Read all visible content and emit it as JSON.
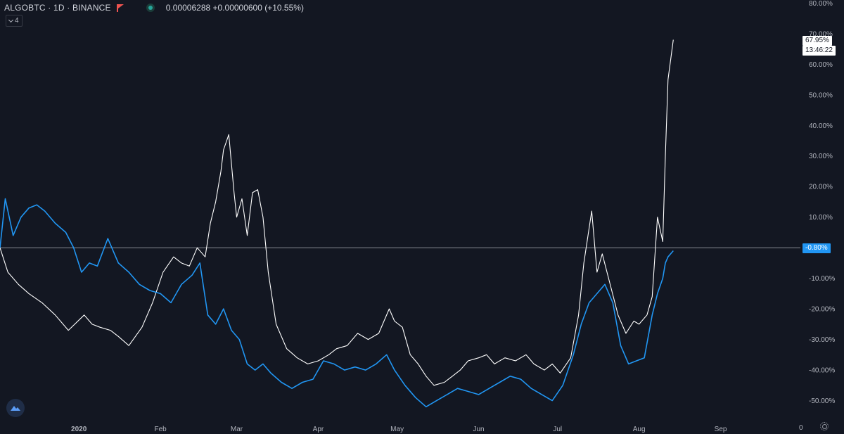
{
  "header": {
    "symbol": "ALGOBTC · 1D · BINANCE",
    "price": "0.00006288 +0.00000600 (+10.55%)",
    "collapse_count": "4"
  },
  "tags": {
    "white_value": "67.95%",
    "countdown": "13:46:22",
    "blue_value": "-0.80%"
  },
  "bottom_right_label": "0",
  "colors": {
    "background": "#131722",
    "white_series": "#ffffff",
    "blue_series": "#2196f3",
    "baseline": "#9598a1",
    "text": "#b2b5be"
  },
  "icons": [
    "flag-icon",
    "status-dot-icon",
    "chevron-down-icon",
    "logo-icon",
    "settings-icon"
  ],
  "chart_data": {
    "type": "line",
    "xlabel": "",
    "ylabel": "",
    "grid": false,
    "y_unit": "%",
    "ylim": [
      -57,
      81
    ],
    "xlim": [
      "2019-12-02",
      "2020-09-30"
    ],
    "y_ticks": [
      80,
      70,
      60,
      50,
      40,
      30,
      20,
      10,
      0,
      -10,
      -20,
      -30,
      -40,
      -50
    ],
    "y_tick_labels": [
      "80.00%",
      "70.00%",
      "60.00%",
      "50.00%",
      "40.00%",
      "30.00%",
      "20.00%",
      "10.00%",
      "0.00%",
      "-10.00%",
      "-20.00%",
      "-30.00%",
      "-40.00%",
      "-50.00%"
    ],
    "x_ticks": [
      {
        "date": "2020-01-01",
        "label": "2020"
      },
      {
        "date": "2020-02-01",
        "label": "Feb"
      },
      {
        "date": "2020-03-01",
        "label": "Mar"
      },
      {
        "date": "2020-04-01",
        "label": "Apr"
      },
      {
        "date": "2020-05-01",
        "label": "May"
      },
      {
        "date": "2020-06-01",
        "label": "Jun"
      },
      {
        "date": "2020-07-01",
        "label": "Jul"
      },
      {
        "date": "2020-08-01",
        "label": "Aug"
      },
      {
        "date": "2020-09-01",
        "label": "Sep"
      }
    ],
    "baseline": 0,
    "series": [
      {
        "color": "#ffffff",
        "x": [
          "2019-12-02",
          "2019-12-05",
          "2019-12-09",
          "2019-12-13",
          "2019-12-18",
          "2019-12-23",
          "2019-12-28",
          "2020-01-03",
          "2020-01-06",
          "2020-01-09",
          "2020-01-13",
          "2020-01-16",
          "2020-01-20",
          "2020-01-25",
          "2020-01-29",
          "2020-02-02",
          "2020-02-06",
          "2020-02-09",
          "2020-02-12",
          "2020-02-15",
          "2020-02-18",
          "2020-02-20",
          "2020-02-22",
          "2020-02-24",
          "2020-02-25",
          "2020-02-27",
          "2020-02-29",
          "2020-03-01",
          "2020-03-03",
          "2020-03-05",
          "2020-03-07",
          "2020-03-09",
          "2020-03-11",
          "2020-03-13",
          "2020-03-16",
          "2020-03-20",
          "2020-03-24",
          "2020-03-28",
          "2020-04-01",
          "2020-04-05",
          "2020-04-08",
          "2020-04-12",
          "2020-04-16",
          "2020-04-20",
          "2020-04-24",
          "2020-04-28",
          "2020-04-30",
          "2020-05-03",
          "2020-05-06",
          "2020-05-09",
          "2020-05-12",
          "2020-05-15",
          "2020-05-19",
          "2020-05-22",
          "2020-05-25",
          "2020-05-28",
          "2020-06-01",
          "2020-06-04",
          "2020-06-07",
          "2020-06-11",
          "2020-06-15",
          "2020-06-19",
          "2020-06-22",
          "2020-06-26",
          "2020-06-29",
          "2020-07-02",
          "2020-07-06",
          "2020-07-09",
          "2020-07-11",
          "2020-07-14",
          "2020-07-16",
          "2020-07-18",
          "2020-07-21",
          "2020-07-24",
          "2020-07-27",
          "2020-07-30",
          "2020-08-01",
          "2020-08-04",
          "2020-08-06",
          "2020-08-08",
          "2020-08-10",
          "2020-08-11",
          "2020-08-12",
          "2020-08-14"
        ],
        "values": [
          0,
          -8,
          -12,
          -15,
          -18,
          -22,
          -27,
          -22,
          -25,
          -26,
          -27,
          -29,
          -32,
          -26,
          -18,
          -8,
          -3,
          -5,
          -6,
          0,
          -3,
          8,
          15,
          25,
          32,
          37,
          18,
          10,
          16,
          4,
          18,
          19,
          10,
          -8,
          -25,
          -33,
          -36,
          -38,
          -37,
          -35,
          -33,
          -32,
          -28,
          -30,
          -28,
          -20,
          -24,
          -26,
          -35,
          -38,
          -42,
          -45,
          -44,
          -42,
          -40,
          -37,
          -36,
          -35,
          -38,
          -36,
          -37,
          -35,
          -38,
          -40,
          -38,
          -41,
          -36,
          -22,
          -5,
          12,
          -8,
          -2,
          -12,
          -22,
          -28,
          -24,
          -25,
          -22,
          -16,
          10,
          2,
          30,
          55,
          68
        ]
      },
      {
        "color": "#2196f3",
        "x": [
          "2019-12-02",
          "2019-12-04",
          "2019-12-07",
          "2019-12-10",
          "2019-12-13",
          "2019-12-16",
          "2019-12-19",
          "2019-12-23",
          "2019-12-27",
          "2019-12-30",
          "2020-01-02",
          "2020-01-05",
          "2020-01-08",
          "2020-01-12",
          "2020-01-16",
          "2020-01-20",
          "2020-01-24",
          "2020-01-28",
          "2020-02-01",
          "2020-02-05",
          "2020-02-09",
          "2020-02-13",
          "2020-02-16",
          "2020-02-19",
          "2020-02-22",
          "2020-02-25",
          "2020-02-28",
          "2020-03-02",
          "2020-03-05",
          "2020-03-08",
          "2020-03-11",
          "2020-03-14",
          "2020-03-18",
          "2020-03-22",
          "2020-03-26",
          "2020-03-30",
          "2020-04-03",
          "2020-04-07",
          "2020-04-11",
          "2020-04-15",
          "2020-04-19",
          "2020-04-23",
          "2020-04-27",
          "2020-04-30",
          "2020-05-04",
          "2020-05-08",
          "2020-05-12",
          "2020-05-16",
          "2020-05-20",
          "2020-05-24",
          "2020-05-28",
          "2020-06-01",
          "2020-06-05",
          "2020-06-09",
          "2020-06-13",
          "2020-06-17",
          "2020-06-21",
          "2020-06-25",
          "2020-06-29",
          "2020-07-03",
          "2020-07-07",
          "2020-07-10",
          "2020-07-13",
          "2020-07-16",
          "2020-07-19",
          "2020-07-22",
          "2020-07-25",
          "2020-07-28",
          "2020-07-31",
          "2020-08-03",
          "2020-08-06",
          "2020-08-08",
          "2020-08-10",
          "2020-08-11",
          "2020-08-12",
          "2020-08-14"
        ],
        "values": [
          0,
          16,
          4,
          10,
          13,
          14,
          12,
          8,
          5,
          0,
          -8,
          -5,
          -6,
          3,
          -5,
          -8,
          -12,
          -14,
          -15,
          -18,
          -12,
          -9,
          -5,
          -22,
          -25,
          -20,
          -27,
          -30,
          -38,
          -40,
          -38,
          -41,
          -44,
          -46,
          -44,
          -43,
          -37,
          -38,
          -40,
          -39,
          -40,
          -38,
          -35,
          -40,
          -45,
          -49,
          -52,
          -50,
          -48,
          -46,
          -47,
          -48,
          -46,
          -44,
          -42,
          -43,
          -46,
          -48,
          -50,
          -45,
          -35,
          -25,
          -18,
          -15,
          -12,
          -18,
          -32,
          -38,
          -37,
          -36,
          -22,
          -15,
          -10,
          -5,
          -3,
          -1
        ]
      }
    ]
  }
}
